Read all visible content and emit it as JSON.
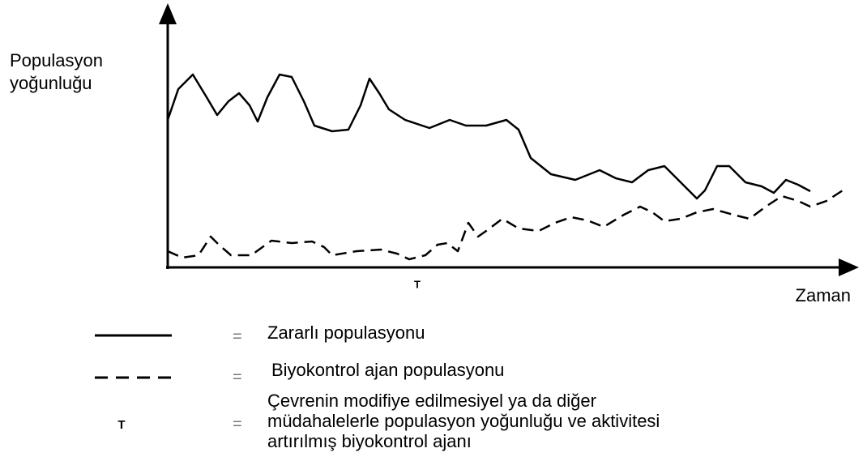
{
  "y_axis_label": [
    "Populasyon",
    "yoğunluğu"
  ],
  "x_axis_label": "Zaman",
  "marker": "T",
  "legend": [
    {
      "symbol": "=",
      "label": [
        "Zararlı populasyonu"
      ]
    },
    {
      "symbol": "=",
      "label": [
        "Biyokontrol ajan populasyonu"
      ]
    },
    {
      "key": "T",
      "symbol": "=",
      "label": [
        "Çevrenin modifiye edilmesiyel ya da diğer",
        "müdahalelerle populasyon yoğunluğu ve aktivitesi",
        "artırılmış biyokontrol ajanı"
      ]
    }
  ]
}
